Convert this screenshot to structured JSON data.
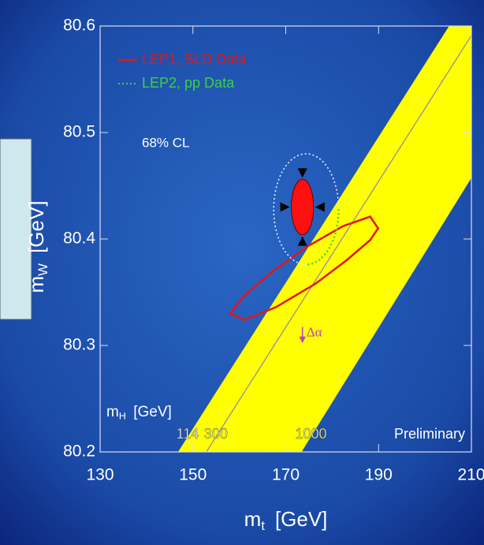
{
  "chart_data": {
    "type": "contour",
    "xlim": [
      130,
      210
    ],
    "ylim": [
      80.2,
      80.6
    ],
    "xticks": [
      130,
      150,
      170,
      190,
      210
    ],
    "yticks": [
      80.2,
      80.3,
      80.4,
      80.5,
      80.6
    ],
    "x_label": {
      "symbol": "m",
      "subscript": "t",
      "unit": "[GeV]"
    },
    "y_label": {
      "symbol": "m",
      "subscript": "W",
      "unit": "[GeV]"
    },
    "confidence_label": "68% CL",
    "series": [
      {
        "name": "LEP1, SLD Data",
        "color": "#e01818",
        "x": [
          158.0,
          161.1,
          167.0,
          174.7,
          182.3,
          188.2,
          189.9,
          188.2,
          183.1,
          176.4,
          167.9,
          161.1
        ],
        "y": [
          80.33,
          80.347,
          80.369,
          80.393,
          80.412,
          80.421,
          80.41,
          80.399,
          80.38,
          80.358,
          80.336,
          80.324
        ]
      },
      {
        "name": "LEP2, pp Data",
        "color": "#3cd23c",
        "center": [
          174.4,
          80.428
        ],
        "half_width": [
          7.0,
          0.052
        ]
      }
    ],
    "measurement": {
      "x": 173.6,
      "y": 80.43,
      "x_err": 2.4,
      "y_err": 0.026,
      "color": "#ff1010"
    },
    "sm_band": {
      "color": "#ffff00",
      "line_color": "#8a8aa8",
      "mh_label": {
        "symbol": "m",
        "subscript": "H",
        "unit": "[GeV]"
      },
      "labels": [
        "114",
        "300",
        "1000"
      ],
      "x_at_ylim": [
        [
          146.8,
          205.2
        ],
        [
          152.9,
          211.3
        ],
        [
          173.4,
          230.3
        ]
      ]
    },
    "delta_alpha": {
      "label": "Δα",
      "x": 173.6,
      "y": 80.31,
      "color": "#c040c0"
    },
    "note": "Preliminary"
  }
}
